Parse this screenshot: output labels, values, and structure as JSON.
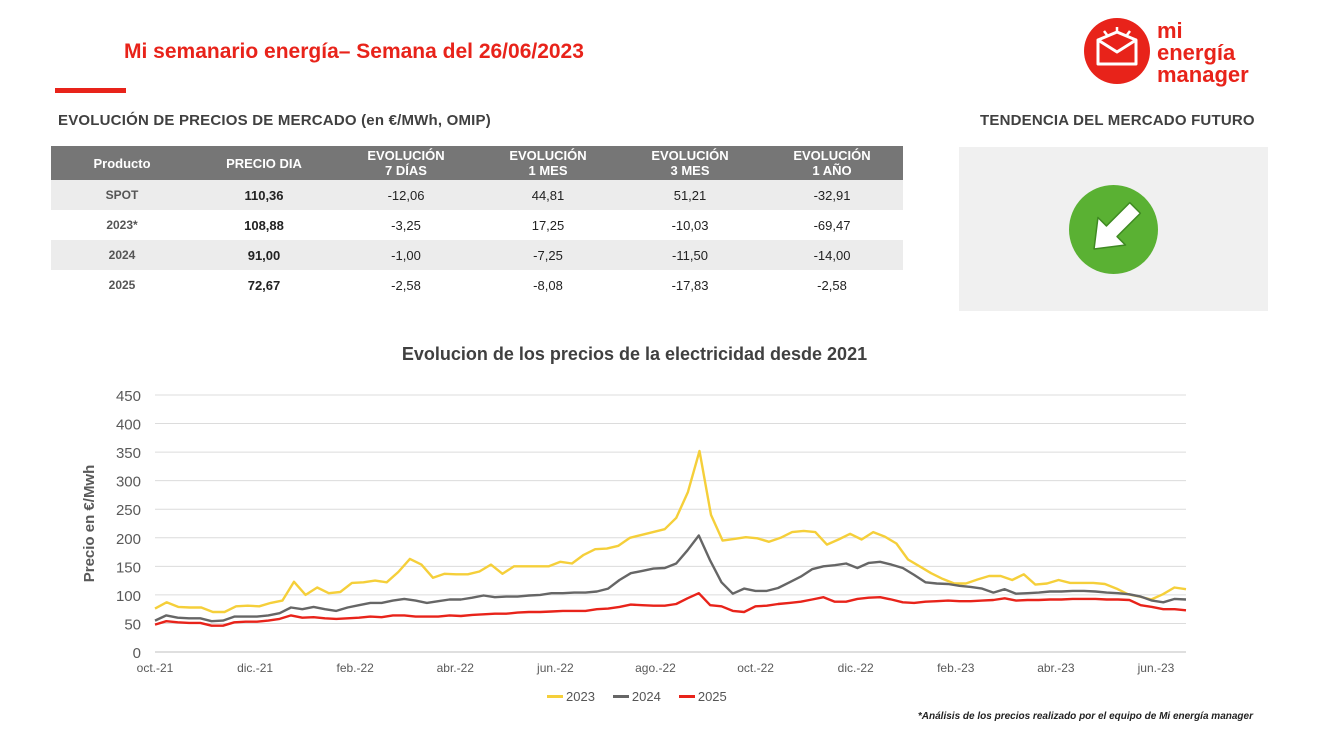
{
  "header": {
    "title": "Mi semanario energía– Semana del 26/06/2023"
  },
  "logo": {
    "line1": "mi",
    "line2": "energía",
    "line3": "manager",
    "color": "#e8231a"
  },
  "prices_section": {
    "heading": "EVOLUCIÓN DE PRECIOS DE MERCADO (en €/MWh, OMIP)",
    "columns": [
      [
        "Producto"
      ],
      [
        "PRECIO DIA"
      ],
      [
        "EVOLUCIÓN",
        "7 DÍAS"
      ],
      [
        "EVOLUCIÓN",
        "1 MES"
      ],
      [
        "EVOLUCIÓN",
        "3 MES"
      ],
      [
        "EVOLUCIÓN",
        "1 AÑO"
      ]
    ],
    "rows": [
      {
        "product": "SPOT",
        "price": "110,36",
        "d7": "-12,06",
        "m1": "44,81",
        "m3": "51,21",
        "y1": "-32,91"
      },
      {
        "product": "2023*",
        "price": "108,88",
        "d7": "-3,25",
        "m1": "17,25",
        "m3": "-10,03",
        "y1": "-69,47"
      },
      {
        "product": "2024",
        "price": "91,00",
        "d7": "-1,00",
        "m1": "-7,25",
        "m3": "-11,50",
        "y1": "-14,00"
      },
      {
        "product": "2025",
        "price": "72,67",
        "d7": "-2,58",
        "m1": "-8,08",
        "m3": "-17,83",
        "y1": "-2,58"
      }
    ]
  },
  "trend_section": {
    "heading": "TENDENCIA DEL MERCADO FUTURO",
    "trend_icon": "arrow-down-right-icon",
    "trend_color": "#5ab133"
  },
  "chart_data": {
    "type": "line",
    "title": "Evolucion de los precios de la electricidad desde 2021",
    "xlabel": "",
    "ylabel": "Precio en €/Mwh",
    "ylim": [
      0,
      450
    ],
    "yticks": [
      0,
      50,
      100,
      150,
      200,
      250,
      300,
      350,
      400,
      450
    ],
    "xticks": [
      "oct.-21",
      "dic.-21",
      "feb.-22",
      "abr.-22",
      "jun.-22",
      "ago.-22",
      "oct.-22",
      "dic.-22",
      "feb.-23",
      "abr.-23",
      "jun.-23"
    ],
    "grid": true,
    "legend": "bottom",
    "series": [
      {
        "name": "2023",
        "color": "#f5cf3a",
        "values": [
          76,
          87,
          79,
          78,
          78,
          70,
          70,
          80,
          81,
          80,
          86,
          90,
          123,
          100,
          113,
          103,
          105,
          121,
          122,
          125,
          122,
          140,
          163,
          153,
          130,
          137,
          136,
          136,
          141,
          153,
          137,
          150,
          150,
          150,
          150,
          158,
          155,
          170,
          180,
          181,
          186,
          200,
          205,
          210,
          215,
          235,
          280,
          352,
          240,
          195,
          198,
          201,
          199,
          193,
          200,
          210,
          212,
          210,
          188,
          197,
          207,
          197,
          210,
          202,
          190,
          162,
          150,
          138,
          128,
          120,
          120,
          127,
          133,
          133,
          126,
          136,
          118,
          120,
          126,
          121,
          121,
          121,
          119,
          111,
          101,
          97,
          92,
          101,
          113,
          110
        ]
      },
      {
        "name": "2024",
        "color": "#666666",
        "values": [
          55,
          64,
          60,
          59,
          59,
          54,
          55,
          62,
          62,
          62,
          64,
          68,
          78,
          75,
          79,
          75,
          72,
          78,
          82,
          86,
          86,
          90,
          93,
          90,
          86,
          89,
          92,
          92,
          95,
          99,
          96,
          97,
          97,
          99,
          100,
          103,
          103,
          104,
          104,
          106,
          111,
          126,
          138,
          142,
          146,
          147,
          155,
          178,
          204,
          160,
          122,
          102,
          111,
          107,
          107,
          112,
          122,
          132,
          145,
          150,
          152,
          155,
          147,
          156,
          158,
          153,
          147,
          135,
          122,
          120,
          119,
          116,
          114,
          111,
          104,
          110,
          102,
          103,
          104,
          106,
          106,
          107,
          107,
          106,
          104,
          103,
          101,
          97,
          90,
          87,
          93,
          92
        ]
      },
      {
        "name": "2025",
        "color": "#e8231a",
        "values": [
          48,
          54,
          52,
          51,
          51,
          46,
          46,
          52,
          53,
          53,
          55,
          58,
          64,
          60,
          61,
          59,
          58,
          59,
          60,
          62,
          61,
          64,
          64,
          62,
          62,
          62,
          64,
          63,
          65,
          66,
          67,
          67,
          69,
          70,
          70,
          71,
          72,
          72,
          72,
          75,
          76,
          79,
          83,
          82,
          81,
          81,
          84,
          94,
          103,
          82,
          80,
          72,
          70,
          80,
          81,
          84,
          86,
          88,
          92,
          96,
          88,
          88,
          93,
          95,
          96,
          92,
          87,
          86,
          88,
          89,
          90,
          89,
          89,
          90,
          91,
          94,
          90,
          91,
          91,
          92,
          92,
          93,
          93,
          93,
          92,
          92,
          91,
          82,
          79,
          75,
          75,
          73
        ]
      }
    ]
  },
  "footnote": "*Análisis de los precios realizado por el equipo de Mi energía manager"
}
